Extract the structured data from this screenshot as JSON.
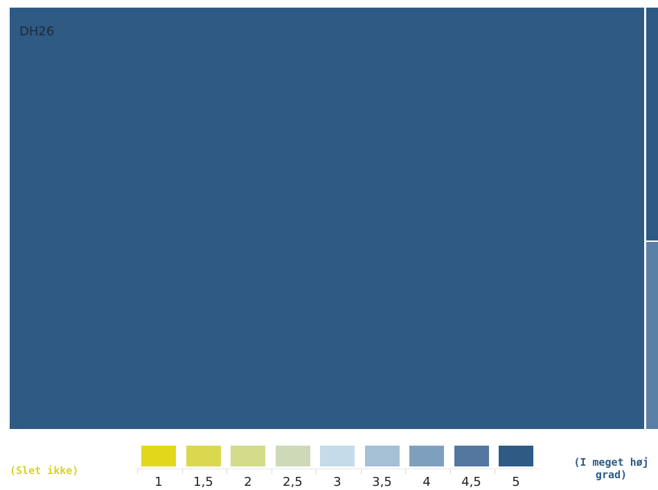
{
  "chart_data": {
    "type": "treemap",
    "tiles": [
      {
        "label": "DH26",
        "value": 5.0,
        "color": "#2e5a84"
      },
      {
        "label": "",
        "value": 5.0,
        "color": "#2e5a84"
      },
      {
        "label": "",
        "value": 4.5,
        "color": "#5a80a6"
      }
    ],
    "scale": {
      "start_label": "(Slet ikke)",
      "end_label": "(I meget høj grad)",
      "steps": [
        {
          "label": "1",
          "color": "#e3d71c"
        },
        {
          "label": "1,5",
          "color": "#d9d84e"
        },
        {
          "label": "2",
          "color": "#d2dc8a"
        },
        {
          "label": "2,5",
          "color": "#cddab7"
        },
        {
          "label": "3",
          "color": "#c4dbea"
        },
        {
          "label": "3,5",
          "color": "#a5bfd5"
        },
        {
          "label": "4",
          "color": "#7e9fbe"
        },
        {
          "label": "4,5",
          "color": "#53779f"
        },
        {
          "label": "5",
          "color": "#2e5a84"
        }
      ]
    }
  }
}
